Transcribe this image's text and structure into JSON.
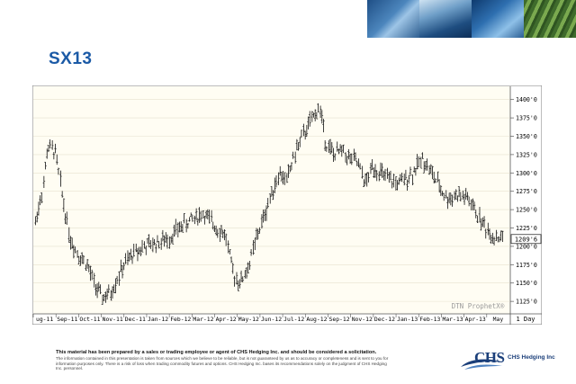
{
  "title": "SX13",
  "footer": {
    "lead": "This material has been prepared by a sales or trading employee or agent of CHS Hedging Inc. and should be considered a solicitation.",
    "body": "The information contained in this presentation is taken from sources which we believe to be reliable, but is not guaranteed by us as to accuracy or completeness and is sent to you for information purposes only. There is a risk of loss when trading commodity futures and options. CHS Hedging Inc. bases its recommendations solely on the judgment of CHS Hedging Inc. personnel."
  },
  "logo": {
    "word": "CHS",
    "sub": "CHS Hedging Inc"
  },
  "chart_data": {
    "type": "line",
    "style": "ohlc-bars",
    "watermark": "DTN ProphetX®",
    "period_label": "1 Day",
    "last_price_label": "1209'6",
    "y_tick_labels": [
      "1400'0",
      "1375'0",
      "1350'0",
      "1325'0",
      "1300'0",
      "1275'0",
      "1250'0",
      "1225'0",
      "1200'0",
      "1175'0",
      "1150'0",
      "1125'0"
    ],
    "y_ticks": [
      1400,
      1375,
      1350,
      1325,
      1300,
      1275,
      1250,
      1225,
      1200,
      1175,
      1150,
      1125
    ],
    "ylim": [
      1108,
      1418
    ],
    "x_tick_labels": [
      "ug-11",
      "Sep-11",
      "Oct-11",
      "Nov-11",
      "Dec-11",
      "Jan-12",
      "Feb-12",
      "Mar-12",
      "Apr-12",
      "May-12",
      "Jun-12",
      "Jul-12",
      "Aug-12",
      "Sep-12",
      "Nov-12",
      "Dec-12",
      "Jan-13",
      "Feb-13",
      "Mar-13",
      "Apr-13",
      "May"
    ],
    "x": [
      "2011-08-25",
      "2011-09-05",
      "2011-09-10",
      "2011-09-20",
      "2011-10-01",
      "2011-10-10",
      "2011-10-20",
      "2011-11-01",
      "2011-11-10",
      "2011-11-20",
      "2011-12-01",
      "2011-12-10",
      "2011-12-20",
      "2012-01-01",
      "2012-01-15",
      "2012-02-01",
      "2012-02-15",
      "2012-03-01",
      "2012-03-15",
      "2012-04-01",
      "2012-04-15",
      "2012-05-01",
      "2012-05-10",
      "2012-05-20",
      "2012-06-01",
      "2012-06-10",
      "2012-06-20",
      "2012-07-01",
      "2012-07-10",
      "2012-07-20",
      "2012-08-01",
      "2012-08-15",
      "2012-09-01",
      "2012-09-10",
      "2012-09-20",
      "2012-10-01",
      "2012-10-10",
      "2012-10-20",
      "2012-11-01",
      "2012-11-10",
      "2012-11-20",
      "2012-12-01",
      "2012-12-15",
      "2013-01-01",
      "2013-01-15",
      "2013-02-01",
      "2013-02-15",
      "2013-03-01",
      "2013-03-15",
      "2013-04-01",
      "2013-04-15",
      "2013-05-01"
    ],
    "values": [
      1233,
      1285,
      1335,
      1330,
      1260,
      1210,
      1190,
      1175,
      1150,
      1130,
      1135,
      1155,
      1175,
      1190,
      1200,
      1205,
      1210,
      1225,
      1235,
      1245,
      1230,
      1215,
      1165,
      1150,
      1175,
      1210,
      1240,
      1275,
      1300,
      1290,
      1330,
      1360,
      1390,
      1340,
      1325,
      1330,
      1320,
      1315,
      1285,
      1310,
      1300,
      1290,
      1285,
      1300,
      1320,
      1290,
      1265,
      1270,
      1265,
      1235,
      1215,
      1210
    ]
  }
}
